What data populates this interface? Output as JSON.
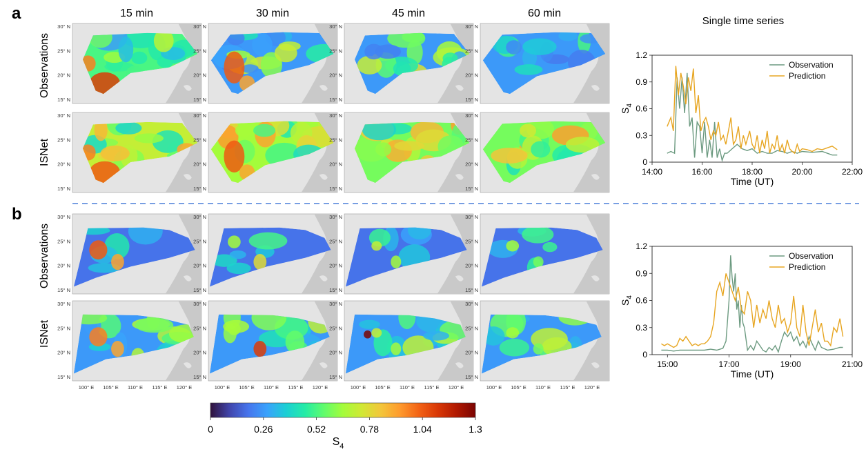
{
  "panels": [
    {
      "label": "a"
    },
    {
      "label": "b"
    }
  ],
  "time_columns": [
    "15 min",
    "30 min",
    "45 min",
    "60 min"
  ],
  "row_labels": [
    "Observations",
    "ISNet"
  ],
  "single_series_title": "Single time series",
  "map_lat_ticks": [
    "30° N",
    "25° N",
    "20° N",
    "15° N"
  ],
  "map_lon_ticks": [
    "100° E",
    "105° E",
    "110° E",
    "115° E",
    "120° E"
  ],
  "colorbar": {
    "ticks": [
      "0",
      "0.26",
      "0.52",
      "0.78",
      "1.04",
      "1.3"
    ],
    "label": "S4",
    "label_main": "S",
    "label_sub": "4",
    "colors": [
      "#30123b",
      "#4145ab",
      "#4675ed",
      "#39a2fc",
      "#1bcfd4",
      "#24eca6",
      "#61fc6c",
      "#a4fc3b",
      "#d1e834",
      "#f3c63a",
      "#fe9b2d",
      "#f36315",
      "#d93806",
      "#b11901",
      "#7a0402"
    ]
  },
  "colors": {
    "observation": "#6c9a80",
    "prediction": "#e7a520",
    "divider": "#4a7fd8",
    "map_bg": "#dcdcdc",
    "land": "#ececec"
  },
  "chart_data": [
    {
      "type": "line",
      "panel": "a",
      "title": "",
      "xlabel": "Time (UT)",
      "ylabel": "S4",
      "xlim": [
        14,
        22
      ],
      "ylim": [
        0,
        1.2
      ],
      "x_ticks": [
        "14:00",
        "16:00",
        "18:00",
        "20:00",
        "22:00"
      ],
      "y_ticks": [
        "0",
        "0.3",
        "0.6",
        "0.9",
        "1.2"
      ],
      "legend": "top-right",
      "series": [
        {
          "name": "Observation",
          "x": [
            14.6,
            14.75,
            14.9,
            15.0,
            15.1,
            15.2,
            15.3,
            15.4,
            15.5,
            15.6,
            15.7,
            15.8,
            15.9,
            16.0,
            16.1,
            16.2,
            16.3,
            16.4,
            16.5,
            16.6,
            16.7,
            16.8,
            16.9,
            17.0,
            17.2,
            17.4,
            17.6,
            17.8,
            18.0,
            18.2,
            18.4,
            18.6,
            18.8,
            19.0,
            19.2,
            19.4,
            19.6,
            19.8,
            20.0,
            20.4,
            20.8,
            21.2,
            21.4
          ],
          "y": [
            0.1,
            0.12,
            0.1,
            0.95,
            0.6,
            0.95,
            0.55,
            1.0,
            0.4,
            0.5,
            0.05,
            0.45,
            0.4,
            0.1,
            0.45,
            0.05,
            0.25,
            0.05,
            0.45,
            0.05,
            0.15,
            0.02,
            0.1,
            0.1,
            0.15,
            0.2,
            0.15,
            0.13,
            0.15,
            0.1,
            0.12,
            0.1,
            0.1,
            0.13,
            0.12,
            0.1,
            0.12,
            0.1,
            0.12,
            0.11,
            0.12,
            0.08,
            0.08
          ]
        },
        {
          "name": "Prediction",
          "x": [
            14.6,
            14.75,
            14.85,
            14.95,
            15.05,
            15.15,
            15.25,
            15.35,
            15.45,
            15.55,
            15.65,
            15.75,
            15.85,
            15.95,
            16.05,
            16.15,
            16.25,
            16.35,
            16.45,
            16.55,
            16.65,
            16.75,
            16.85,
            16.95,
            17.05,
            17.15,
            17.25,
            17.35,
            17.45,
            17.55,
            17.65,
            17.75,
            17.9,
            18.0,
            18.1,
            18.2,
            18.3,
            18.4,
            18.5,
            18.6,
            18.7,
            18.8,
            18.9,
            19.0,
            19.1,
            19.2,
            19.3,
            19.4,
            19.5,
            19.6,
            19.7,
            19.8,
            19.9,
            20.0,
            20.2,
            20.4,
            20.6,
            20.8,
            21.0,
            21.2,
            21.4
          ],
          "y": [
            0.4,
            0.5,
            0.35,
            1.08,
            0.75,
            1.0,
            0.85,
            0.65,
            0.95,
            0.8,
            1.05,
            0.55,
            0.75,
            0.35,
            0.45,
            0.5,
            0.4,
            0.25,
            0.35,
            0.3,
            0.45,
            0.25,
            0.3,
            0.2,
            0.35,
            0.5,
            0.2,
            0.25,
            0.4,
            0.15,
            0.3,
            0.2,
            0.35,
            0.2,
            0.15,
            0.3,
            0.1,
            0.25,
            0.15,
            0.35,
            0.1,
            0.2,
            0.15,
            0.3,
            0.12,
            0.2,
            0.1,
            0.25,
            0.15,
            0.12,
            0.1,
            0.2,
            0.12,
            0.15,
            0.14,
            0.12,
            0.15,
            0.14,
            0.16,
            0.18,
            0.14
          ]
        }
      ]
    },
    {
      "type": "line",
      "panel": "b",
      "title": "",
      "xlabel": "Time (UT)",
      "ylabel": "S4",
      "xlim": [
        14.5,
        21
      ],
      "ylim": [
        0,
        1.2
      ],
      "x_ticks": [
        "15:00",
        "17:00",
        "19:00",
        "21:00"
      ],
      "y_ticks": [
        "0",
        "0.3",
        "0.6",
        "0.9",
        "1.2"
      ],
      "legend": "top-right",
      "series": [
        {
          "name": "Observation",
          "x": [
            14.8,
            15.0,
            15.2,
            15.4,
            15.6,
            15.8,
            16.0,
            16.2,
            16.4,
            16.6,
            16.8,
            16.9,
            17.0,
            17.05,
            17.1,
            17.15,
            17.2,
            17.25,
            17.3,
            17.35,
            17.4,
            17.45,
            17.5,
            17.6,
            17.7,
            17.8,
            17.9,
            18.0,
            18.1,
            18.2,
            18.3,
            18.4,
            18.5,
            18.6,
            18.7,
            18.8,
            18.9,
            19.0,
            19.1,
            19.2,
            19.3,
            19.4,
            19.5,
            19.6,
            19.7,
            19.8,
            19.9,
            20.0,
            20.2,
            20.4,
            20.6,
            20.7
          ],
          "y": [
            0.05,
            0.05,
            0.04,
            0.05,
            0.05,
            0.05,
            0.05,
            0.05,
            0.06,
            0.05,
            0.07,
            0.15,
            0.6,
            1.1,
            0.85,
            0.7,
            0.9,
            0.5,
            0.6,
            0.3,
            0.55,
            0.35,
            0.3,
            0.05,
            0.1,
            0.05,
            0.15,
            0.1,
            0.05,
            0.03,
            0.08,
            0.05,
            0.1,
            0.03,
            0.15,
            0.25,
            0.2,
            0.25,
            0.15,
            0.2,
            0.1,
            0.15,
            0.08,
            0.2,
            0.12,
            0.05,
            0.15,
            0.08,
            0.05,
            0.06,
            0.08,
            0.08
          ]
        },
        {
          "name": "Prediction",
          "x": [
            14.8,
            14.9,
            15.0,
            15.1,
            15.2,
            15.3,
            15.4,
            15.5,
            15.6,
            15.7,
            15.8,
            15.9,
            16.0,
            16.1,
            16.2,
            16.3,
            16.4,
            16.5,
            16.6,
            16.7,
            16.8,
            16.9,
            17.0,
            17.1,
            17.2,
            17.3,
            17.4,
            17.5,
            17.6,
            17.7,
            17.8,
            17.9,
            18.0,
            18.1,
            18.2,
            18.3,
            18.4,
            18.5,
            18.6,
            18.7,
            18.8,
            18.9,
            19.0,
            19.1,
            19.2,
            19.3,
            19.4,
            19.5,
            19.6,
            19.7,
            19.8,
            19.9,
            20.0,
            20.1,
            20.2,
            20.3,
            20.4,
            20.5,
            20.6,
            20.7
          ],
          "y": [
            0.12,
            0.1,
            0.12,
            0.1,
            0.08,
            0.1,
            0.18,
            0.15,
            0.2,
            0.15,
            0.1,
            0.12,
            0.1,
            0.12,
            0.12,
            0.15,
            0.2,
            0.35,
            0.7,
            0.8,
            0.65,
            0.9,
            0.8,
            0.7,
            0.6,
            0.75,
            0.5,
            0.45,
            0.7,
            0.6,
            0.3,
            0.55,
            0.35,
            0.5,
            0.4,
            0.6,
            0.4,
            0.3,
            0.55,
            0.35,
            0.4,
            0.25,
            0.35,
            0.65,
            0.3,
            0.2,
            0.55,
            0.25,
            0.1,
            0.3,
            0.5,
            0.25,
            0.35,
            0.15,
            0.15,
            0.1,
            0.3,
            0.25,
            0.4,
            0.2
          ]
        }
      ]
    }
  ]
}
